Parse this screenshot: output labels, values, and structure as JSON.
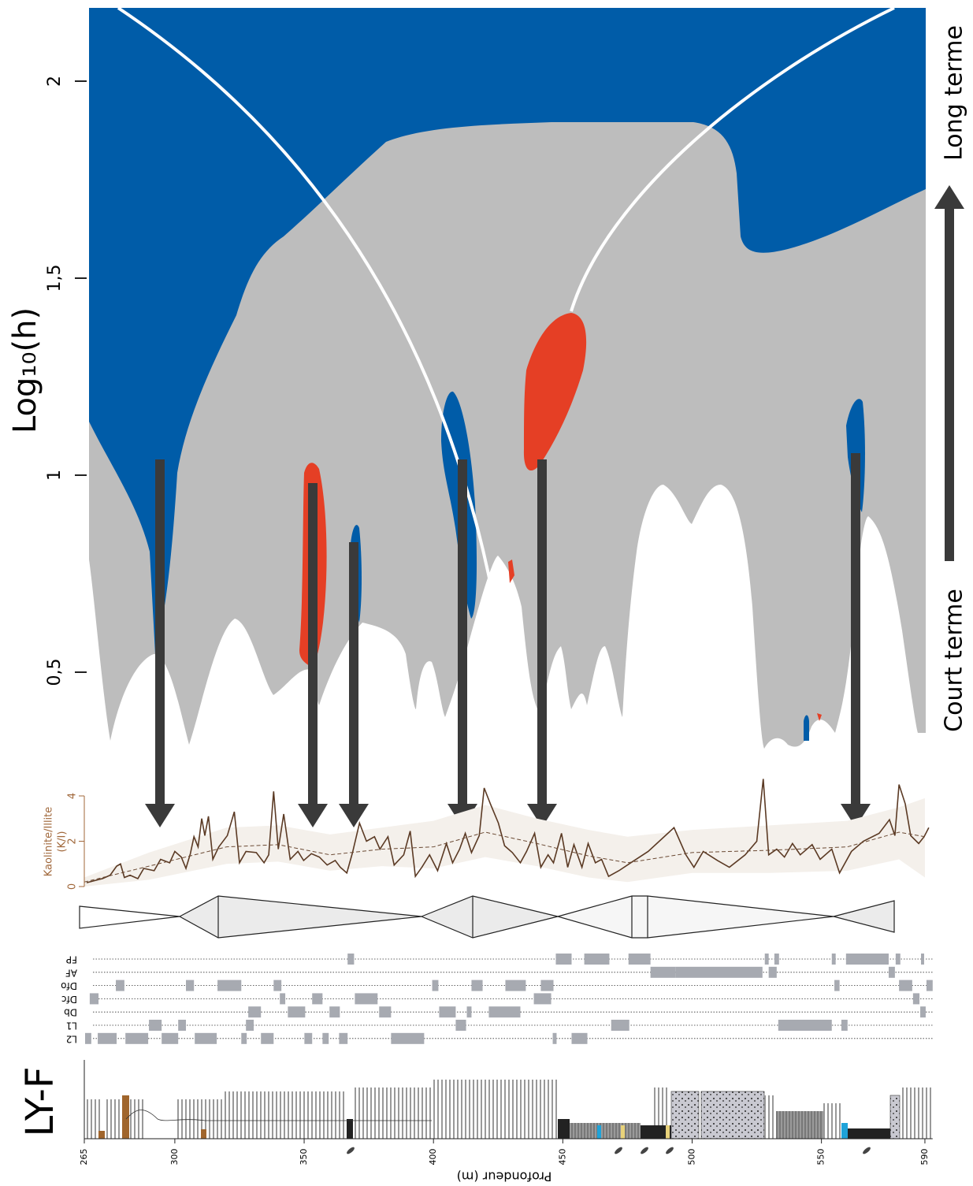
{
  "chart_data": [
    {
      "type": "wavelet",
      "ylabel": "Log₁₀(h)",
      "ylim": [
        0.25,
        2.19
      ],
      "yticks": [
        {
          "value": 0.5,
          "label": "0,5"
        },
        1,
        {
          "value": 1.5,
          "label": "1,5"
        },
        2
      ],
      "annotations": [
        "Long terme",
        "Court terme"
      ]
    },
    {
      "type": "line",
      "ylabel": [
        "Kaolinite/Illite",
        "(K/I)"
      ],
      "ylim": [
        0,
        4
      ],
      "yticks": [
        0,
        2,
        4
      ],
      "xlim": [
        265,
        593
      ],
      "axis_color": "#a0673a",
      "band": {
        "color": "#f4f0eb",
        "x": [
          265,
          290,
          320,
          340,
          360,
          380,
          400,
          420,
          440,
          460,
          475,
          500,
          530,
          560,
          580,
          590
        ],
        "upper": [
          0.4,
          1.5,
          2.6,
          2.7,
          2.3,
          2.6,
          2.9,
          3.6,
          3.0,
          2.5,
          2.2,
          2.5,
          2.7,
          2.9,
          3.5,
          3.9
        ],
        "lower": [
          0,
          0.3,
          1.0,
          1.1,
          0.7,
          0.9,
          0.8,
          1.3,
          0.9,
          0.4,
          0.2,
          0.6,
          0.6,
          0.7,
          1.2,
          0.4
        ]
      },
      "series": [
        {
          "color": "#5b3a24",
          "dashed": false,
          "x": [
            265.9,
            272,
            275,
            277.5,
            279,
            280.5,
            282.7,
            285.7,
            288,
            292,
            294.5,
            298,
            300,
            302.5,
            304.3,
            306,
            307.4,
            309,
            310.4,
            311.6,
            313,
            314.7,
            317,
            320.3,
            323,
            325,
            327.5,
            331.5,
            334.5,
            336.3,
            338.2,
            340,
            342.1,
            344.6,
            347.6,
            349.8,
            352.8,
            355.9,
            358.9,
            362,
            364,
            366.5,
            368.7,
            371.4,
            374.1,
            377.2,
            379.3,
            382.4,
            384.8,
            388.5,
            391,
            393,
            395.5,
            398.5,
            401.6,
            405,
            407.4,
            410.1,
            412.3,
            414.7,
            417.7,
            419.6,
            422,
            425.1,
            427.5,
            430.5,
            433.6,
            436,
            439.1,
            441.5,
            444.3,
            446.4,
            449.5,
            451.9,
            454.3,
            457.4,
            459.8,
            462.6,
            465,
            467.7,
            471.7,
            476.3,
            483,
            493,
            497.6,
            500.7,
            504.3,
            509.8,
            514.4,
            520.5,
            525,
            527.5,
            529.6,
            532.7,
            535.7,
            538.8,
            541.8,
            546.4,
            549.5,
            554,
            557,
            561.6,
            566.2,
            572.3,
            576.3,
            578.4,
            580,
            582.4,
            584.5,
            587.6,
            589.7,
            591.5
          ],
          "values": [
            0.17,
            0.35,
            0.5,
            0.9,
            1.0,
            0.4,
            0.5,
            0.35,
            0.8,
            0.7,
            1.2,
            1.05,
            1.55,
            1.3,
            0.8,
            1.45,
            2.2,
            1.75,
            3.0,
            2.25,
            3.1,
            1.2,
            1.75,
            2.25,
            3.3,
            1.05,
            1.55,
            1.5,
            1.05,
            1.4,
            4.2,
            1.65,
            3.2,
            1.2,
            1.55,
            1.15,
            1.45,
            1.3,
            0.95,
            1.15,
            0.85,
            0.6,
            1.5,
            2.8,
            2.0,
            2.2,
            1.65,
            2.2,
            0.95,
            1.4,
            2.45,
            0.45,
            0.85,
            1.4,
            0.7,
            1.9,
            1.05,
            1.65,
            2.35,
            1.5,
            2.25,
            4.35,
            3.65,
            2.8,
            1.8,
            1.5,
            1.05,
            1.55,
            2.35,
            0.85,
            1.4,
            1.05,
            2.35,
            0.85,
            1.85,
            0.85,
            1.9,
            1.05,
            1.2,
            0.45,
            0.7,
            1.05,
            1.55,
            2.6,
            1.4,
            0.85,
            1.55,
            1.15,
            0.85,
            1.4,
            2.0,
            4.75,
            1.4,
            1.65,
            1.3,
            1.9,
            1.4,
            1.85,
            1.2,
            1.65,
            0.6,
            1.55,
            2.0,
            2.35,
            2.95,
            2.25,
            4.5,
            3.65,
            2.25,
            1.9,
            2.2,
            2.6
          ]
        },
        {
          "color": "#6b4a34",
          "dashed": true,
          "x": [
            265,
            290,
            320,
            340,
            360,
            380,
            400,
            420,
            440,
            460,
            475,
            500,
            530,
            560,
            580,
            590
          ],
          "values": [
            0.2,
            0.9,
            1.75,
            1.85,
            1.4,
            1.65,
            1.75,
            2.4,
            1.9,
            1.35,
            1.05,
            1.5,
            1.6,
            1.75,
            2.4,
            2.2
          ]
        }
      ]
    },
    {
      "type": "intervals",
      "color": "#a7aab1",
      "xlim": [
        265,
        593
      ],
      "categories": [
        "FP",
        "AF",
        "Dfo",
        "Dfc",
        "Db",
        "L1",
        "L2"
      ],
      "intervals": [
        [
          [
            366.8,
            369.3
          ],
          [
            447.3,
            453.4
          ],
          [
            458.3,
            468
          ],
          [
            475.4,
            483.9
          ],
          [
            528.1,
            529.6
          ],
          [
            531.8,
            533.6
          ],
          [
            554,
            555.5
          ],
          [
            559.5,
            576
          ],
          [
            578.7,
            580.5
          ],
          [
            588.5,
            589.7
          ]
        ],
        [
          [
            483.9,
            493.7
          ],
          [
            493.7,
            527.2
          ],
          [
            529.6,
            532.7
          ],
          [
            576,
            578.4
          ]
        ],
        [
          [
            277.2,
            280.5
          ],
          [
            304.3,
            307.4
          ],
          [
            316.5,
            325.7
          ],
          [
            338.2,
            341.2
          ],
          [
            399.5,
            401.9
          ],
          [
            414.7,
            419
          ],
          [
            427.8,
            435.7
          ],
          [
            441.5,
            446.4
          ],
          [
            555,
            557
          ],
          [
            580,
            585.1
          ],
          [
            590.6,
            593
          ]
        ],
        [
          [
            267.1,
            270.5
          ],
          [
            340.6,
            342.7
          ],
          [
            353.1,
            357.1
          ],
          [
            369.6,
            378.4
          ],
          [
            438.8,
            445.5
          ],
          [
            585.4,
            587.9
          ]
        ],
        [
          [
            328.4,
            333.3
          ],
          [
            343.7,
            350.4
          ],
          [
            359.8,
            363.8
          ],
          [
            379,
            383.6
          ],
          [
            402.2,
            408.6
          ],
          [
            412.9,
            414.7
          ],
          [
            421.4,
            433.6
          ],
          [
            588.2,
            590.3
          ]
        ],
        [
          [
            290,
            294.9
          ],
          [
            301.3,
            304.3
          ],
          [
            327.5,
            330.5
          ],
          [
            408.6,
            412.6
          ],
          [
            468.7,
            475.7
          ],
          [
            533.3,
            554
          ],
          [
            557.7,
            560.1
          ]
        ],
        [
          [
            265.3,
            267.7
          ],
          [
            270.2,
            277.5
          ],
          [
            280.9,
            289.7
          ],
          [
            294.9,
            301.3
          ],
          [
            307.7,
            316.2
          ],
          [
            325.7,
            327.8
          ],
          [
            333.3,
            338.2
          ],
          [
            350.1,
            353.1
          ],
          [
            357.1,
            359.5
          ],
          [
            363.5,
            366.8
          ],
          [
            383.6,
            396.4
          ],
          [
            446.1,
            447.6
          ],
          [
            453.4,
            459.5
          ]
        ]
      ]
    },
    {
      "type": "log",
      "title": "LY-F",
      "xlabel": "Profondeur (m)",
      "xlim": [
        265,
        593
      ],
      "xticks": [
        265,
        300,
        350,
        400,
        450,
        500,
        550,
        590
      ]
    }
  ]
}
